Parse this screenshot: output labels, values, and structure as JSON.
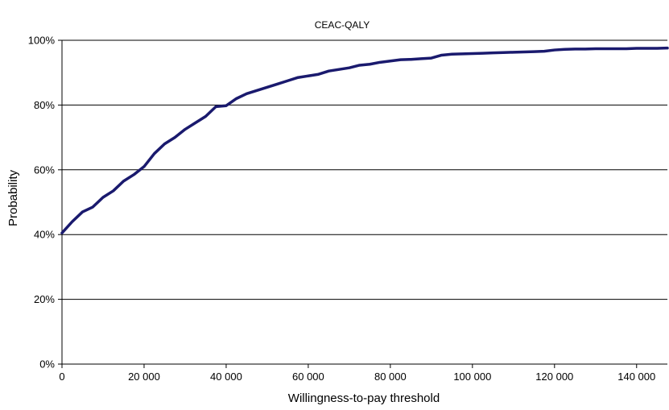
{
  "chart_data": {
    "type": "line",
    "title": "CEAC-QALY",
    "xlabel": "Willingness-to-pay threshold",
    "ylabel": "Probability",
    "xlim": [
      0,
      147500
    ],
    "ylim": [
      0,
      100
    ],
    "x_ticks": [
      {
        "value": 0,
        "label": "0"
      },
      {
        "value": 20000,
        "label": "20 000"
      },
      {
        "value": 40000,
        "label": "40 000"
      },
      {
        "value": 60000,
        "label": "60 000"
      },
      {
        "value": 80000,
        "label": "80 000"
      },
      {
        "value": 100000,
        "label": "100 000"
      },
      {
        "value": 120000,
        "label": "120 000"
      },
      {
        "value": 140000,
        "label": "140 000"
      }
    ],
    "y_ticks": [
      {
        "value": 0,
        "label": "0%"
      },
      {
        "value": 20,
        "label": "20%"
      },
      {
        "value": 40,
        "label": "40%"
      },
      {
        "value": 60,
        "label": "60%"
      },
      {
        "value": 80,
        "label": "80%"
      },
      {
        "value": 100,
        "label": "100%"
      }
    ],
    "grid": "horizontal",
    "line_color": "#1a1a6e",
    "series": [
      {
        "x": [
          0,
          2500,
          5000,
          7500,
          10000,
          12500,
          15000,
          17500,
          20000,
          22500,
          25000,
          27500,
          30000,
          32500,
          35000,
          37500,
          40000,
          42500,
          45000,
          47500,
          50000,
          52500,
          55000,
          57500,
          60000,
          62500,
          65000,
          67500,
          70000,
          72500,
          75000,
          77500,
          80000,
          82500,
          85000,
          87500,
          90000,
          92500,
          95000,
          97500,
          100000,
          102500,
          105000,
          107500,
          110000,
          112500,
          115000,
          117500,
          120000,
          122500,
          125000,
          127500,
          130000,
          132500,
          135000,
          137500,
          140000,
          142500,
          145000,
          147500
        ],
        "values": [
          40.5,
          44.0,
          47.0,
          48.5,
          51.5,
          53.5,
          56.5,
          58.5,
          61.0,
          65.0,
          68.0,
          70.0,
          72.5,
          74.5,
          76.5,
          79.5,
          79.8,
          82.0,
          83.5,
          84.5,
          85.5,
          86.5,
          87.5,
          88.5,
          89.0,
          89.5,
          90.5,
          91.0,
          91.5,
          92.3,
          92.6,
          93.2,
          93.6,
          94.0,
          94.1,
          94.3,
          94.5,
          95.4,
          95.7,
          95.8,
          95.9,
          96.0,
          96.1,
          96.2,
          96.3,
          96.4,
          96.5,
          96.6,
          97.0,
          97.2,
          97.3,
          97.3,
          97.4,
          97.4,
          97.4,
          97.4,
          97.5,
          97.5,
          97.5,
          97.6
        ]
      }
    ]
  }
}
